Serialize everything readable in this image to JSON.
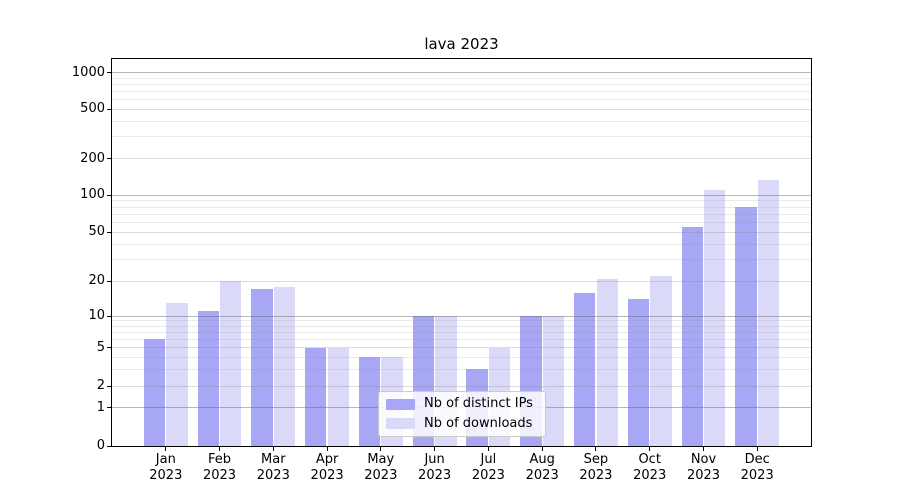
{
  "title": "lava 2023",
  "chart_data": {
    "type": "bar",
    "title": "lava 2023",
    "categories": [
      {
        "month": "Jan",
        "year": "2023"
      },
      {
        "month": "Feb",
        "year": "2023"
      },
      {
        "month": "Mar",
        "year": "2023"
      },
      {
        "month": "Apr",
        "year": "2023"
      },
      {
        "month": "May",
        "year": "2023"
      },
      {
        "month": "Jun",
        "year": "2023"
      },
      {
        "month": "Jul",
        "year": "2023"
      },
      {
        "month": "Aug",
        "year": "2023"
      },
      {
        "month": "Sep",
        "year": "2023"
      },
      {
        "month": "Oct",
        "year": "2023"
      },
      {
        "month": "Nov",
        "year": "2023"
      },
      {
        "month": "Dec",
        "year": "2023"
      }
    ],
    "series": [
      {
        "name": "Nb of distinct IPs",
        "color": "#a7a7f5",
        "values": [
          6,
          11,
          17,
          5,
          4,
          10,
          3,
          10,
          16,
          14,
          55,
          80
        ]
      },
      {
        "name": "Nb of downloads",
        "color": "#dadaf8",
        "values": [
          13,
          20,
          18,
          5,
          4,
          10,
          5,
          10,
          21,
          22,
          110,
          133
        ]
      }
    ],
    "y_axis": {
      "scale": "symlog",
      "ticks": [
        0,
        1,
        2,
        5,
        10,
        20,
        50,
        100,
        200,
        500,
        1000
      ],
      "power_gridlines": [
        1,
        10,
        100,
        1000
      ],
      "minor_gridlines": [
        3,
        4,
        6,
        7,
        8,
        9,
        30,
        40,
        60,
        70,
        80,
        90,
        300,
        400,
        600,
        700,
        800,
        900
      ],
      "ylim": [
        0,
        1300
      ]
    },
    "grid": "both",
    "legend_position": "lower center"
  },
  "legend": {
    "items": [
      {
        "label": "Nb of distinct IPs",
        "color": "#a7a7f5"
      },
      {
        "label": "Nb of downloads",
        "color": "#dadaf8"
      }
    ]
  },
  "colors": {
    "ips_bar": "#a7a7f5",
    "downloads_bar": "#dadaf8",
    "grid_power": "#b2b2b2",
    "grid_mid": "#d6d6d6",
    "grid_minor": "#e8e8e8",
    "axis": "#000000",
    "background": "#ffffff"
  }
}
